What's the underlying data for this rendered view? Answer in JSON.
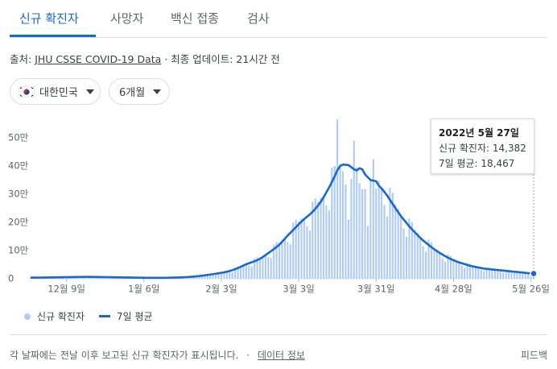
{
  "tabs": [
    "신규 확진자",
    "사망자",
    "백신 접종",
    "검사"
  ],
  "source": {
    "prefix": "출처:",
    "link": "JHU CSSE COVID-19 Data",
    "updated": "· 최종 업데이트: 21시간 전"
  },
  "filters": [
    "대한민국",
    "6개월"
  ],
  "footer": {
    "note": "각 날짜에는 전날 이후 보고된 신규 확진자가 표시됩니다.",
    "separator": "·",
    "info_link": "데이터 정보",
    "feedback": "피드백"
  },
  "chart_data": {
    "type": "bar_line",
    "categories": [
      null,
      null,
      null,
      null,
      null,
      null,
      null,
      null,
      null,
      null,
      null,
      null,
      null,
      "12월 9일",
      null,
      null,
      null,
      null,
      null,
      null,
      null,
      null,
      null,
      null,
      null,
      null,
      null,
      null,
      null,
      null,
      null,
      null,
      null,
      null,
      null,
      null,
      null,
      null,
      null,
      null,
      null,
      "1월 6일",
      null,
      null,
      null,
      null,
      null,
      null,
      null,
      null,
      null,
      null,
      null,
      null,
      null,
      null,
      null,
      null,
      null,
      null,
      null,
      null,
      null,
      null,
      null,
      null,
      null,
      null,
      null,
      "2월 3일",
      null,
      null,
      null,
      null,
      null,
      null,
      null,
      null,
      null,
      null,
      null,
      null,
      null,
      null,
      null,
      null,
      null,
      null,
      null,
      null,
      null,
      null,
      null,
      null,
      null,
      null,
      null,
      "3월 3일",
      null,
      null,
      null,
      null,
      null,
      null,
      null,
      null,
      null,
      null,
      null,
      null,
      null,
      null,
      null,
      null,
      null,
      null,
      null,
      null,
      null,
      null,
      null,
      null,
      null,
      null,
      null,
      "3월 31일",
      null,
      null,
      null,
      null,
      null,
      null,
      null,
      null,
      null,
      null,
      null,
      null,
      null,
      null,
      null,
      null,
      null,
      null,
      null,
      null,
      null,
      null,
      null,
      null,
      null,
      null,
      null,
      "4월 28일",
      null,
      null,
      null,
      null,
      null,
      null,
      null,
      null,
      null,
      null,
      null,
      null,
      null,
      null,
      null,
      null,
      null,
      null,
      null,
      null,
      null,
      null,
      null,
      null,
      null,
      null,
      null,
      "5월 26일",
      null
    ],
    "series": [
      {
        "name": "신규 확진자",
        "color": "#aecbfa",
        "kind": "bar",
        "values": [
          4200,
          4100,
          3500,
          3200,
          4900,
          5100,
          4800,
          4900,
          4900,
          4300,
          3800,
          6100,
          6300,
          6000,
          6200,
          6000,
          5300,
          4700,
          7500,
          7700,
          7100,
          7200,
          6700,
          5600,
          4800,
          7100,
          7000,
          6200,
          6000,
          5500,
          4500,
          3800,
          5600,
          5400,
          4800,
          4700,
          4400,
          3600,
          3100,
          4500,
          4400,
          3900,
          3800,
          3500,
          3000,
          2600,
          3900,
          3900,
          3700,
          3800,
          3800,
          3400,
          3200,
          5200,
          5500,
          5500,
          6000,
          6300,
          6000,
          5900,
          10000,
          11200,
          11400,
          12800,
          13600,
          12800,
          12300,
          20600,
          22300,
          22100,
          23900,
          25000,
          23400,
          22900,
          39100,
          43700,
          44600,
          49400,
          51500,
          46800,
          43900,
          71300,
          75900,
          74600,
          80900,
          84000,
          77400,
          73500,
          120800,
          130000,
          127100,
          137600,
          142000,
          130100,
          122300,
          199000,
          210000,
          203000,
          213000,
          212000,
          187000,
          171000,
          273000,
          285000,
          273000,
          287000,
          289000,
          260000,
          243000,
          394000,
          400000,
          565000,
          407000,
          381000,
          334000,
          209000,
          354000,
          490000,
          395000,
          339000,
          318000,
          319000,
          187000,
          347000,
          424000,
          320000,
          347000,
          320000,
          262000,
          221000,
          322000,
          305000,
          263000,
          248000,
          222000,
          179000,
          149000,
          214000,
          201000,
          173000,
          163000,
          145000,
          116000,
          96000,
          138000,
          129000,
          110000,
          103000,
          92000,
          73000,
          60000,
          86000,
          81000,
          69000,
          65000,
          58000,
          47000,
          39000,
          56000,
          53000,
          46000,
          44000,
          40000,
          32000,
          27000,
          40000,
          39000,
          35000,
          34000,
          31000,
          26000,
          22000,
          32000,
          31000,
          27000,
          26000,
          24000,
          20000,
          17000,
          24000,
          23000,
          20000,
          14382
        ]
      },
      {
        "name": "7일 평균",
        "color": "#1967d2",
        "kind": "line",
        "values": [
          4000,
          4100,
          4100,
          4200,
          4300,
          4400,
          4600,
          4700,
          4900,
          5000,
          5100,
          5300,
          5500,
          5700,
          5900,
          6000,
          6200,
          6300,
          6500,
          6700,
          6800,
          6900,
          6700,
          6600,
          6400,
          6200,
          6100,
          5900,
          5700,
          5500,
          5300,
          5100,
          4900,
          4700,
          4600,
          4500,
          4400,
          4200,
          4100,
          3900,
          3800,
          3700,
          3600,
          3500,
          3500,
          3400,
          3400,
          3400,
          3500,
          3600,
          3800,
          4000,
          4200,
          4500,
          4800,
          5200,
          5700,
          6300,
          7000,
          7800,
          8700,
          9700,
          10900,
          12200,
          13600,
          15000,
          16400,
          17900,
          19400,
          21000,
          22800,
          25000,
          27500,
          30500,
          34000,
          38000,
          42500,
          47000,
          51500,
          55000,
          58500,
          62000,
          66000,
          71000,
          77000,
          84000,
          91000,
          98000,
          105000,
          113000,
          121000,
          131000,
          142000,
          153000,
          163000,
          173000,
          183000,
          193000,
          203000,
          212000,
          220000,
          228000,
          237000,
          248000,
          260000,
          273000,
          289000,
          306000,
          324000,
          343000,
          363000,
          385000,
          400000,
          405000,
          404000,
          403000,
          396000,
          388000,
          384000,
          392000,
          388000,
          370000,
          360000,
          350000,
          348000,
          346000,
          330000,
          320000,
          308000,
          295000,
          280000,
          265000,
          250000,
          236000,
          222000,
          210000,
          198000,
          186000,
          175000,
          165000,
          155000,
          145000,
          136000,
          128000,
          120000,
          112000,
          105000,
          98000,
          92000,
          86000,
          80000,
          75000,
          70000,
          66000,
          62000,
          58000,
          55000,
          52000,
          49000,
          46000,
          44000,
          42000,
          40000,
          38000,
          36000,
          35000,
          34000,
          33000,
          32000,
          31000,
          30000,
          29000,
          28000,
          27000,
          26000,
          25000,
          24000,
          23000,
          22000,
          21000,
          20000,
          19000,
          18467
        ]
      }
    ],
    "ylim": [
      0,
      570000
    ],
    "yticks": [
      0,
      {
        "value": 100000,
        "label": "10만"
      },
      {
        "value": 200000,
        "label": "20만"
      },
      {
        "value": 300000,
        "label": "30만"
      },
      {
        "value": 400000,
        "label": "40만"
      },
      {
        "value": 500000,
        "label": "50만"
      }
    ],
    "grid": false,
    "tooltip": {
      "title": "2022년 5월 27일",
      "lines": [
        "신규 확진자: 14,382",
        "7일 평균: 18,467"
      ]
    }
  }
}
